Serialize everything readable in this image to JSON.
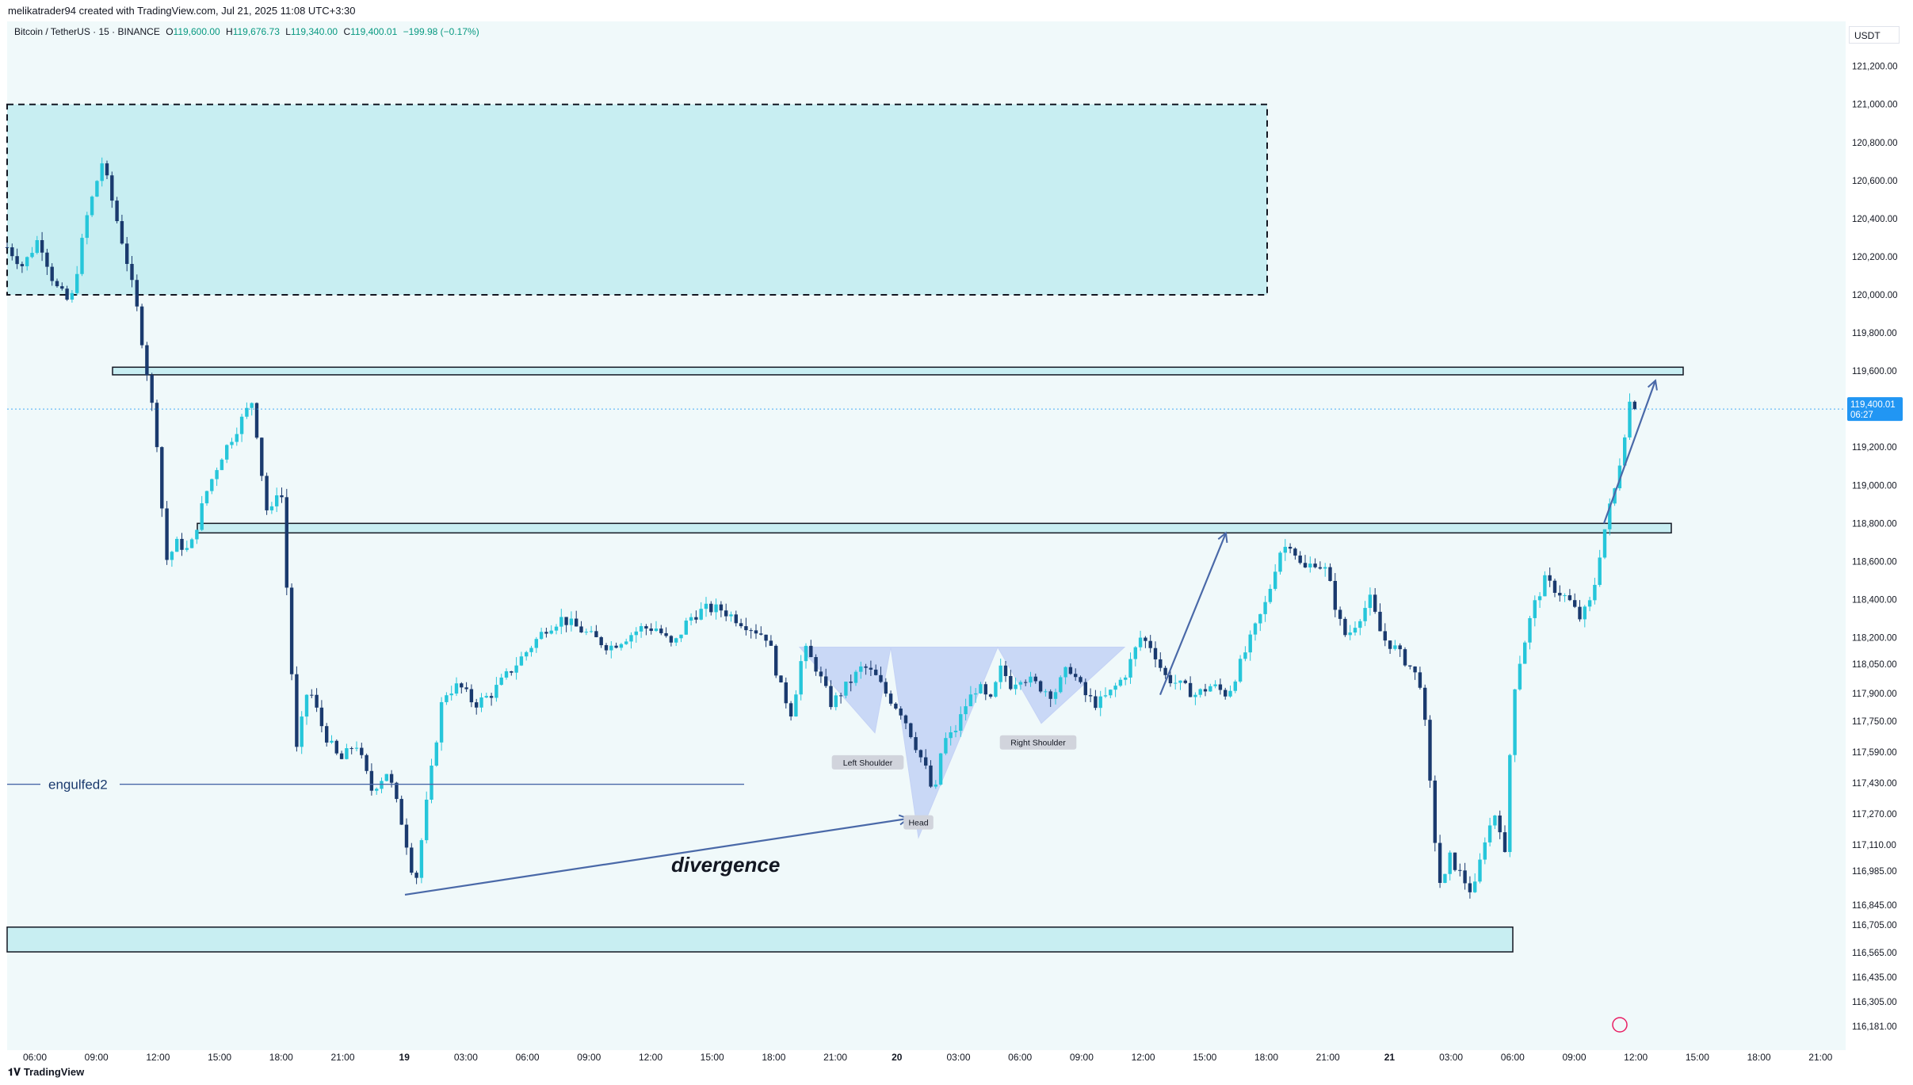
{
  "header": {
    "credit": "melikatrader94 created with TradingView.com, Jul 21, 2025 11:08 UTC+3:30",
    "symbol": "Bitcoin / TetherUS · 15 · BINANCE",
    "ohlc": {
      "o_label": "O",
      "o": "119,600.00",
      "h_label": "H",
      "h": "119,676.73",
      "l_label": "L",
      "l": "119,340.00",
      "c_label": "C",
      "c": "119,400.01",
      "change": "−199.98 (−0.17%)"
    }
  },
  "price_axis": {
    "currency": "USDT",
    "last_price": "119,400.01",
    "countdown": "06:27"
  },
  "footer": {
    "brand": "TradingView"
  },
  "colors": {
    "up": "#26c6da",
    "down": "#1a3a6e",
    "zone_fill": "#c8eef2",
    "pattern_fill": "#a9bdf3",
    "annotation": "#4a69a8",
    "background": "#f0f9fa",
    "last_price_label": "#2196f3"
  },
  "chart_data": {
    "type": "candlestick",
    "title": "Bitcoin / TetherUS · 15 · BINANCE",
    "interval": "15",
    "ylim": [
      116181,
      121400
    ],
    "y_ticks": [
      "121,200.00",
      "121,000.00",
      "120,800.00",
      "120,600.00",
      "120,400.00",
      "120,200.00",
      "120,000.00",
      "119,800.00",
      "119,600.00",
      "119,200.00",
      "119,000.00",
      "118,800.00",
      "118,600.00",
      "118,400.00",
      "118,200.00",
      "118,050.00",
      "117,900.00",
      "117,750.00",
      "117,590.00",
      "117,430.00",
      "117,270.00",
      "117,110.00",
      "116,985.00",
      "116,845.00",
      "116,705.00",
      "116,565.00",
      "116,435.00",
      "116,305.00",
      "116,181.00"
    ],
    "y_tick_values": [
      121200,
      121000,
      120800,
      120600,
      120400,
      120200,
      120000,
      119800,
      119600,
      119200,
      119000,
      118800,
      118600,
      118400,
      118200,
      118050,
      117900,
      117750,
      117590,
      117430,
      117270,
      117110,
      116985,
      116845,
      116705,
      116565,
      116435,
      116305,
      116181
    ],
    "x_ticks": [
      "06:00",
      "09:00",
      "12:00",
      "15:00",
      "18:00",
      "21:00",
      "19",
      "03:00",
      "06:00",
      "09:00",
      "12:00",
      "15:00",
      "18:00",
      "21:00",
      "20",
      "03:00",
      "06:00",
      "09:00",
      "12:00",
      "15:00",
      "18:00",
      "21:00",
      "21",
      "03:00",
      "06:00",
      "09:00",
      "12:00",
      "15:00",
      "18:00",
      "21:00"
    ],
    "x_tick_bold": [
      false,
      false,
      false,
      false,
      false,
      false,
      true,
      false,
      false,
      false,
      false,
      false,
      false,
      false,
      true,
      false,
      false,
      false,
      false,
      false,
      false,
      false,
      true,
      false,
      false,
      false,
      false,
      false,
      false,
      false
    ],
    "price_path": [
      [
        0,
        120250
      ],
      [
        20,
        120150
      ],
      [
        40,
        120300
      ],
      [
        60,
        120050
      ],
      [
        80,
        119950
      ],
      [
        100,
        120400
      ],
      [
        120,
        120700
      ],
      [
        135,
        120450
      ],
      [
        150,
        120200
      ],
      [
        165,
        119900
      ],
      [
        180,
        119500
      ],
      [
        190,
        119200
      ],
      [
        200,
        118600
      ],
      [
        215,
        118700
      ],
      [
        230,
        118650
      ],
      [
        250,
        118950
      ],
      [
        270,
        119150
      ],
      [
        290,
        119300
      ],
      [
        310,
        119450
      ],
      [
        320,
        119100
      ],
      [
        330,
        118800
      ],
      [
        345,
        119050
      ],
      [
        355,
        118300
      ],
      [
        365,
        117600
      ],
      [
        380,
        117950
      ],
      [
        400,
        117700
      ],
      [
        420,
        117550
      ],
      [
        440,
        117650
      ],
      [
        460,
        117400
      ],
      [
        480,
        117500
      ],
      [
        500,
        117200
      ],
      [
        515,
        116900
      ],
      [
        530,
        117350
      ],
      [
        550,
        117900
      ],
      [
        570,
        117950
      ],
      [
        590,
        117850
      ],
      [
        610,
        117900
      ],
      [
        640,
        118050
      ],
      [
        660,
        118150
      ],
      [
        680,
        118250
      ],
      [
        700,
        118300
      ],
      [
        720,
        118250
      ],
      [
        740,
        118200
      ],
      [
        760,
        118150
      ],
      [
        780,
        118200
      ],
      [
        800,
        118250
      ],
      [
        820,
        118250
      ],
      [
        840,
        118150
      ],
      [
        860,
        118300
      ],
      [
        880,
        118350
      ],
      [
        900,
        118350
      ],
      [
        920,
        118300
      ],
      [
        940,
        118250
      ],
      [
        960,
        118200
      ],
      [
        975,
        117950
      ],
      [
        990,
        117800
      ],
      [
        1005,
        118150
      ],
      [
        1020,
        118050
      ],
      [
        1040,
        117850
      ],
      [
        1060,
        117950
      ],
      [
        1080,
        118050
      ],
      [
        1095,
        118000
      ],
      [
        1110,
        117900
      ],
      [
        1130,
        117800
      ],
      [
        1145,
        117650
      ],
      [
        1160,
        117500
      ],
      [
        1170,
        117350
      ],
      [
        1180,
        117650
      ],
      [
        1195,
        117700
      ],
      [
        1210,
        117850
      ],
      [
        1225,
        117950
      ],
      [
        1240,
        117850
      ],
      [
        1255,
        118050
      ],
      [
        1265,
        117950
      ],
      [
        1280,
        118000
      ],
      [
        1300,
        117950
      ],
      [
        1320,
        117900
      ],
      [
        1340,
        118050
      ],
      [
        1360,
        117900
      ],
      [
        1375,
        117850
      ],
      [
        1390,
        117900
      ],
      [
        1410,
        118000
      ],
      [
        1430,
        118200
      ],
      [
        1445,
        118150
      ],
      [
        1460,
        118000
      ],
      [
        1480,
        117950
      ],
      [
        1500,
        117900
      ],
      [
        1520,
        117950
      ],
      [
        1540,
        117900
      ],
      [
        1555,
        118050
      ],
      [
        1570,
        118200
      ],
      [
        1590,
        118400
      ],
      [
        1605,
        118650
      ],
      [
        1620,
        118700
      ],
      [
        1635,
        118550
      ],
      [
        1650,
        118600
      ],
      [
        1665,
        118550
      ],
      [
        1680,
        118300
      ],
      [
        1690,
        118200
      ],
      [
        1705,
        118300
      ],
      [
        1720,
        118400
      ],
      [
        1735,
        118200
      ],
      [
        1750,
        118150
      ],
      [
        1770,
        118050
      ],
      [
        1785,
        117950
      ],
      [
        1800,
        117200
      ],
      [
        1810,
        116850
      ],
      [
        1820,
        117050
      ],
      [
        1835,
        116950
      ],
      [
        1850,
        116850
      ],
      [
        1865,
        117150
      ],
      [
        1880,
        117300
      ],
      [
        1890,
        117050
      ],
      [
        1900,
        117900
      ],
      [
        1910,
        118100
      ],
      [
        1925,
        118350
      ],
      [
        1940,
        118500
      ],
      [
        1955,
        118450
      ],
      [
        1970,
        118400
      ],
      [
        1985,
        118300
      ],
      [
        2000,
        118400
      ],
      [
        2010,
        118650
      ],
      [
        2020,
        118850
      ],
      [
        2030,
        119000
      ],
      [
        2040,
        119250
      ],
      [
        2050,
        119500
      ],
      [
        2055,
        119400
      ]
    ],
    "zones": [
      {
        "name": "upper-supply-zone",
        "from": [
          0,
          121000
        ],
        "to": [
          1590,
          120000
        ],
        "style": "dashed"
      },
      {
        "name": "resistance-line",
        "from": [
          133,
          119580
        ],
        "to": [
          2115,
          119620
        ]
      },
      {
        "name": "mid-level",
        "from": [
          240,
          118750
        ],
        "to": [
          2100,
          118800
        ]
      },
      {
        "name": "bottom-demand-zone",
        "from": [
          0,
          116680
        ],
        "to": [
          1900,
          116550
        ]
      }
    ],
    "annotations": {
      "divergence": "divergence",
      "engulfed": "engulfed2",
      "left_shoulder": "Left Shoulder",
      "head": "Head",
      "right_shoulder": "Right Shoulder"
    }
  }
}
